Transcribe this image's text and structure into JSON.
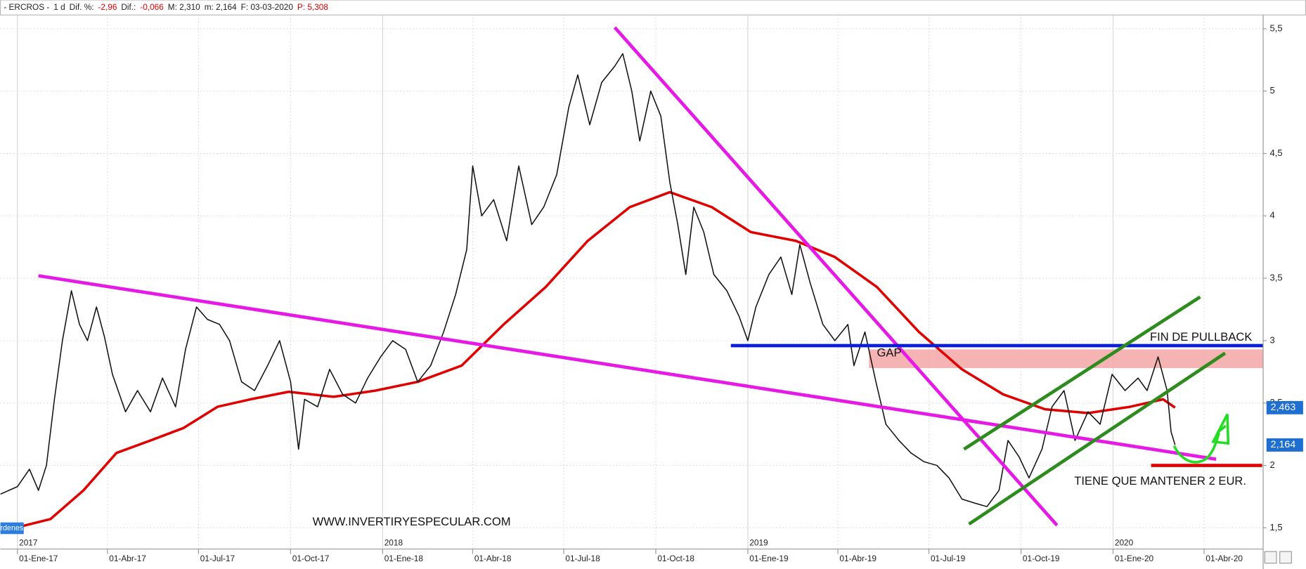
{
  "header": [
    {
      "text": "- ERCROS -"
    },
    {
      "text": "1 d"
    },
    {
      "text": "Dif. %:"
    },
    {
      "text": "-2,96",
      "color": "#e00000"
    },
    {
      "text": "Dif.:"
    },
    {
      "text": "-0,066",
      "color": "#e00000"
    },
    {
      "text": "M: 2,310"
    },
    {
      "text": "m: 2,164"
    },
    {
      "text": "F: 03-03-2020"
    },
    {
      "text": "P: 5,308",
      "color": "#e00000"
    }
  ],
  "left_tab": "rdenes",
  "chart_data": {
    "type": "line",
    "xlim": [
      "2016-12-15",
      "2020-05-30"
    ],
    "ylim": [
      1.33,
      5.61
    ],
    "grid": true,
    "xticks": [
      {
        "value": "2017-01-01",
        "label": "01-Ene-17"
      },
      {
        "value": "2017-04-01",
        "label": "01-Abr-17"
      },
      {
        "value": "2017-07-01",
        "label": "01-Jul-17"
      },
      {
        "value": "2017-10-01",
        "label": "01-Oct-17"
      },
      {
        "value": "2018-01-01",
        "label": "01-Ene-18"
      },
      {
        "value": "2018-04-01",
        "label": "01-Abr-18"
      },
      {
        "value": "2018-07-01",
        "label": "01-Jul-18"
      },
      {
        "value": "2018-10-01",
        "label": "01-Oct-18"
      },
      {
        "value": "2019-01-01",
        "label": "01-Ene-19"
      },
      {
        "value": "2019-04-01",
        "label": "01-Abr-19"
      },
      {
        "value": "2019-07-01",
        "label": "01-Jul-19"
      },
      {
        "value": "2019-10-01",
        "label": "01-Oct-19"
      },
      {
        "value": "2020-01-01",
        "label": "01-Ene-20"
      },
      {
        "value": "2020-04-01",
        "label": "01-Abr-20"
      }
    ],
    "year_ticks": [
      {
        "value": "2017-01-01",
        "label": "2017"
      },
      {
        "value": "2018-01-01",
        "label": "2018"
      },
      {
        "value": "2019-01-01",
        "label": "2019"
      },
      {
        "value": "2020-01-01",
        "label": "2020"
      }
    ],
    "yticks": [
      {
        "value": 1.5,
        "label": "1,5"
      },
      2,
      {
        "value": 2.5,
        "label": "2,5"
      },
      3,
      {
        "value": 3.5,
        "label": "3,5"
      },
      4,
      {
        "value": 4.5,
        "label": "4,5"
      },
      5,
      {
        "value": 5.5,
        "label": "5,5"
      }
    ],
    "series": [
      {
        "color": "#e00000",
        "x": [
          "2016-12-15",
          "2017-02-03",
          "2017-03-08",
          "2017-04-10",
          "2017-05-14",
          "2017-06-16",
          "2017-07-20",
          "2017-08-22",
          "2017-09-29",
          "2017-11-13",
          "2017-12-25",
          "2018-02-05",
          "2018-03-21",
          "2018-05-02",
          "2018-06-13",
          "2018-07-25",
          "2018-09-05",
          "2018-10-15",
          "2018-11-26",
          "2019-01-04",
          "2019-02-18",
          "2019-03-29",
          "2019-05-10",
          "2019-06-21",
          "2019-08-03",
          "2019-09-13",
          "2019-10-25",
          "2019-12-07",
          "2020-01-18",
          "2020-02-20",
          "2020-03-03"
        ],
        "values": [
          1.47,
          1.57,
          1.8,
          2.1,
          2.2,
          2.3,
          2.47,
          2.53,
          2.59,
          2.55,
          2.6,
          2.67,
          2.8,
          3.13,
          3.43,
          3.8,
          4.07,
          4.19,
          4.07,
          3.87,
          3.8,
          3.67,
          3.43,
          3.07,
          2.77,
          2.57,
          2.45,
          2.42,
          2.47,
          2.53,
          2.463
        ]
      },
      {
        "color": "#111111",
        "x": [
          "2016-12-15",
          "2017-01-01",
          "2017-01-13",
          "2017-01-22",
          "2017-01-30",
          "2017-02-07",
          "2017-02-15",
          "2017-02-24",
          "2017-03-04",
          "2017-03-12",
          "2017-03-21",
          "2017-03-29",
          "2017-04-06",
          "2017-04-19",
          "2017-05-01",
          "2017-05-14",
          "2017-05-26",
          "2017-06-08",
          "2017-06-18",
          "2017-06-29",
          "2017-07-10",
          "2017-07-22",
          "2017-08-01",
          "2017-08-13",
          "2017-08-26",
          "2017-09-08",
          "2017-09-20",
          "2017-10-01",
          "2017-10-09",
          "2017-10-15",
          "2017-10-28",
          "2017-11-09",
          "2017-11-22",
          "2017-12-05",
          "2017-12-17",
          "2017-12-30",
          "2018-01-11",
          "2018-01-24",
          "2018-02-05",
          "2018-02-18",
          "2018-03-03",
          "2018-03-15",
          "2018-03-26",
          "2018-04-01",
          "2018-04-10",
          "2018-04-22",
          "2018-05-05",
          "2018-05-17",
          "2018-05-30",
          "2018-06-11",
          "2018-06-24",
          "2018-07-06",
          "2018-07-15",
          "2018-07-27",
          "2018-08-08",
          "2018-08-21",
          "2018-08-29",
          "2018-09-07",
          "2018-09-15",
          "2018-09-26",
          "2018-10-06",
          "2018-10-15",
          "2018-10-23",
          "2018-10-31",
          "2018-11-08",
          "2018-11-18",
          "2018-11-28",
          "2018-12-11",
          "2018-12-23",
          "2019-01-01",
          "2019-01-09",
          "2019-01-22",
          "2019-02-03",
          "2019-02-14",
          "2019-02-22",
          "2019-03-04",
          "2019-03-17",
          "2019-03-29",
          "2019-04-11",
          "2019-04-17",
          "2019-04-28",
          "2019-05-09",
          "2019-05-19",
          "2019-06-01",
          "2019-06-13",
          "2019-06-26",
          "2019-07-09",
          "2019-07-21",
          "2019-08-03",
          "2019-08-15",
          "2019-08-28",
          "2019-09-09",
          "2019-09-18",
          "2019-09-29",
          "2019-10-09",
          "2019-10-22",
          "2019-11-01",
          "2019-11-13",
          "2019-11-24",
          "2019-12-07",
          "2019-12-19",
          "2019-12-31",
          "2020-01-13",
          "2020-01-26",
          "2020-02-04",
          "2020-02-15",
          "2020-02-24",
          "2020-02-28",
          "2020-03-03"
        ],
        "values": [
          1.77,
          1.83,
          1.97,
          1.8,
          2.0,
          2.53,
          3.0,
          3.4,
          3.13,
          3.0,
          3.27,
          3.03,
          2.73,
          2.43,
          2.6,
          2.43,
          2.7,
          2.47,
          2.93,
          3.27,
          3.17,
          3.13,
          3.0,
          2.67,
          2.6,
          2.8,
          3.0,
          2.67,
          2.13,
          2.53,
          2.47,
          2.77,
          2.57,
          2.5,
          2.7,
          2.87,
          3.0,
          2.93,
          2.67,
          2.8,
          3.07,
          3.37,
          3.73,
          4.4,
          4.0,
          4.13,
          3.8,
          4.4,
          3.93,
          4.07,
          4.33,
          4.87,
          5.13,
          4.73,
          5.07,
          5.2,
          5.3,
          5.0,
          4.6,
          5.0,
          4.8,
          4.27,
          3.93,
          3.53,
          4.07,
          3.87,
          3.53,
          3.4,
          3.2,
          3.0,
          3.27,
          3.53,
          3.67,
          3.37,
          3.77,
          3.47,
          3.13,
          3.0,
          3.13,
          2.8,
          3.07,
          2.67,
          2.33,
          2.2,
          2.1,
          2.03,
          2.0,
          1.9,
          1.73,
          1.7,
          1.67,
          1.8,
          2.2,
          2.07,
          1.9,
          2.13,
          2.47,
          2.6,
          2.2,
          2.43,
          2.33,
          2.73,
          2.6,
          2.7,
          2.6,
          2.87,
          2.6,
          2.27,
          2.164
        ]
      }
    ],
    "price_tags": [
      {
        "value": 2.463,
        "label": "2,463"
      },
      {
        "value": 2.164,
        "label": "2,164"
      }
    ],
    "drawings": [
      {
        "type": "band",
        "color": "#f4a6a6",
        "x": [
          "2019-05-02",
          "2020-05-30"
        ],
        "y": [
          2.93,
          2.78
        ]
      },
      {
        "type": "line",
        "color": "#e619e6",
        "x": [
          "2017-01-22",
          "2020-04-13"
        ],
        "y": [
          3.52,
          2.05
        ]
      },
      {
        "type": "line",
        "color": "#e619e6",
        "x": [
          "2018-08-21",
          "2019-11-06"
        ],
        "y": [
          5.51,
          1.52
        ]
      },
      {
        "type": "line",
        "color": "#0a1fd4",
        "x": [
          "2018-12-15",
          "2020-05-30"
        ],
        "y": [
          2.96,
          2.96
        ]
      },
      {
        "type": "line",
        "color": "#2e8b1e",
        "x": [
          "2019-08-10",
          "2020-04-22"
        ],
        "y": [
          1.53,
          2.9
        ]
      },
      {
        "type": "line",
        "color": "#2e8b1e",
        "x": [
          "2019-08-05",
          "2020-03-28"
        ],
        "y": [
          2.13,
          3.35
        ]
      },
      {
        "type": "line",
        "color": "#e00000",
        "x": [
          "2020-02-08",
          "2020-05-29"
        ],
        "y": [
          2.0,
          2.0
        ]
      }
    ],
    "annotations": [
      "FIN DE PULLBACK",
      "GAP",
      "TIENE QUE MANTENER 2 EUR.",
      "WWW.INVERTIRYESPECULAR.COM"
    ]
  }
}
